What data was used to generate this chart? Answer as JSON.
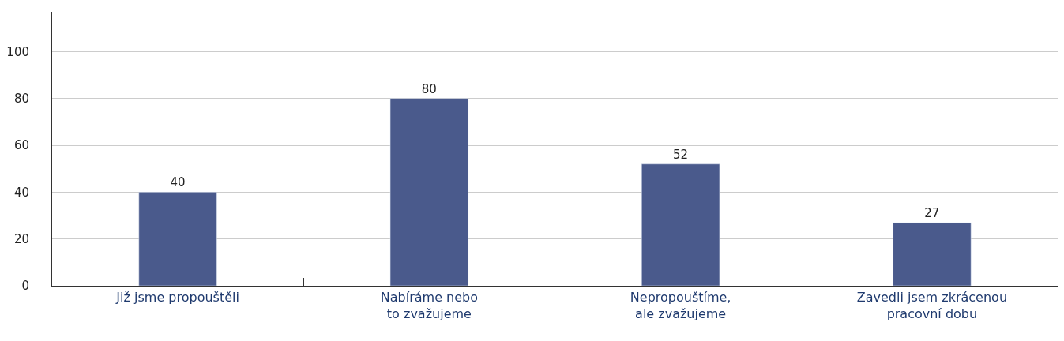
{
  "chart_data": {
    "type": "bar",
    "categories": [
      "Již jsme propouštěli",
      "Nabíráme nebo\nto zvažujeme",
      "Nepropouštíme,\nale zvažujeme",
      "Zavedli jsem zkrácenou\npracovní dobu"
    ],
    "values": [
      40,
      80,
      52,
      27
    ],
    "color": "#4a5a8c",
    "ylim": [
      0,
      117
    ],
    "yticks": [
      0,
      20,
      40,
      60,
      80,
      100
    ],
    "grid": "y",
    "data_labels": true,
    "legend": false
  }
}
